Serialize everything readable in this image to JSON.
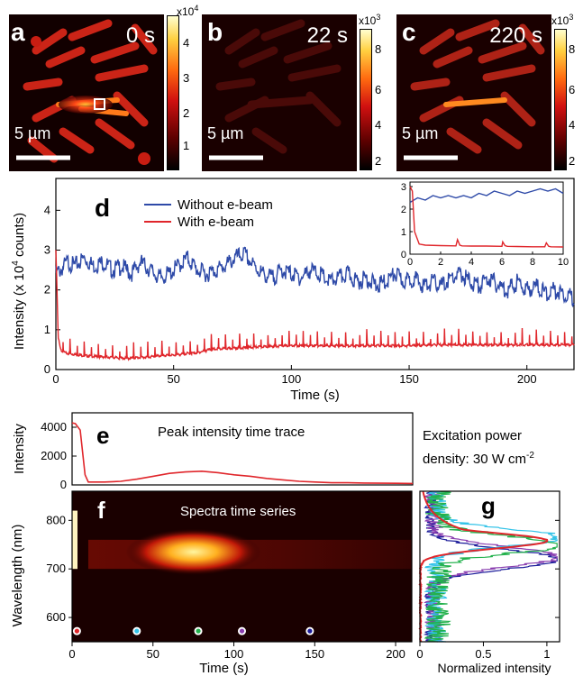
{
  "panels": {
    "a": {
      "letter": "a",
      "time": "0 s",
      "scale": "5 µm",
      "cb_exp": "x10",
      "cb_sup": "4",
      "cb_ticks": [
        "4",
        "3",
        "2",
        "1"
      ]
    },
    "b": {
      "letter": "b",
      "time": "22 s",
      "scale": "5 µm",
      "cb_exp": "x10",
      "cb_sup": "3",
      "cb_ticks": [
        "8",
        "6",
        "4",
        "2"
      ]
    },
    "c": {
      "letter": "c",
      "time": "220 s",
      "scale": "5 µm",
      "cb_exp": "x10",
      "cb_sup": "3",
      "cb_ticks": [
        "8",
        "6",
        "4",
        "2"
      ]
    }
  },
  "colors": {
    "blue": "#2e4aa8",
    "red": "#e0262b",
    "green": "#22b14c",
    "cyan": "#33c3e8",
    "purple": "#8a3fb0",
    "navy": "#1c1c9a"
  },
  "chart_data": [
    {
      "panel": "d",
      "type": "line",
      "ylabel_pre": "Intensity (x 10",
      "ylabel_sup": "4",
      "ylabel_post": " counts)",
      "xlabel": "Time (s)",
      "xlim": [
        0,
        220
      ],
      "ylim": [
        0,
        4.8
      ],
      "xticks": [
        0,
        50,
        100,
        150,
        200
      ],
      "yticks": [
        0,
        1,
        2,
        3,
        4
      ],
      "legend": "top-center",
      "series": [
        {
          "name": "Without e-beam",
          "color": "#2e4aa8",
          "x": [
            0,
            2,
            5,
            8,
            12,
            16,
            20,
            24,
            28,
            32,
            36,
            40,
            44,
            48,
            52,
            56,
            60,
            64,
            68,
            72,
            76,
            80,
            84,
            88,
            92,
            96,
            100,
            104,
            108,
            112,
            116,
            120,
            124,
            128,
            132,
            136,
            140,
            144,
            148,
            152,
            156,
            160,
            164,
            168,
            172,
            176,
            180,
            184,
            188,
            192,
            196,
            200,
            204,
            208,
            212,
            216,
            220
          ],
          "y": [
            2.4,
            2.5,
            2.7,
            2.6,
            2.8,
            2.6,
            2.7,
            2.5,
            2.6,
            2.4,
            2.7,
            2.5,
            2.3,
            2.4,
            2.6,
            2.8,
            2.5,
            2.4,
            2.5,
            2.6,
            2.8,
            2.9,
            2.6,
            2.4,
            2.3,
            2.5,
            2.4,
            2.3,
            2.5,
            2.4,
            2.2,
            2.3,
            2.4,
            2.2,
            2.3,
            2.1,
            2.2,
            2.4,
            2.2,
            2.3,
            2.1,
            2.2,
            2.1,
            2.3,
            2.4,
            2.2,
            2.1,
            2.3,
            2.1,
            2.0,
            2.2,
            2.0,
            2.1,
            1.9,
            2.0,
            1.9,
            1.8
          ]
        },
        {
          "name": "With e-beam",
          "color": "#e0262b",
          "x": [
            0,
            0.5,
            1,
            2,
            3,
            5,
            8,
            12,
            16,
            20,
            25,
            30,
            35,
            40,
            45,
            50,
            55,
            60,
            65,
            70,
            80,
            90,
            100,
            110,
            120,
            130,
            140,
            150,
            160,
            170,
            180,
            190,
            200,
            210,
            220
          ],
          "y": [
            3.0,
            2.0,
            0.8,
            0.5,
            0.45,
            0.4,
            0.38,
            0.35,
            0.33,
            0.32,
            0.3,
            0.28,
            0.3,
            0.32,
            0.35,
            0.36,
            0.4,
            0.42,
            0.5,
            0.52,
            0.55,
            0.58,
            0.6,
            0.6,
            0.6,
            0.6,
            0.6,
            0.6,
            0.62,
            0.62,
            0.62,
            0.62,
            0.62,
            0.62,
            0.62
          ],
          "spike_period": 3.0,
          "spike_height": 0.4
        }
      ],
      "inset": {
        "xlim": [
          0,
          10
        ],
        "ylim": [
          0,
          3.2
        ],
        "xticks": [
          0,
          2,
          4,
          6,
          8,
          10
        ],
        "yticks": [
          0,
          1,
          2,
          3
        ],
        "series": [
          {
            "name": "Without e-beam",
            "color": "#2e4aa8",
            "x": [
              0,
              0.5,
              1,
              1.5,
              2,
              2.5,
              3,
              3.5,
              4,
              4.5,
              5,
              5.5,
              6,
              6.5,
              7,
              7.5,
              8,
              8.5,
              9,
              9.5,
              10
            ],
            "y": [
              2.3,
              2.5,
              2.4,
              2.6,
              2.5,
              2.6,
              2.5,
              2.6,
              2.5,
              2.7,
              2.6,
              2.8,
              2.7,
              2.6,
              2.8,
              2.7,
              2.8,
              2.9,
              2.8,
              2.9,
              2.7
            ]
          },
          {
            "name": "With e-beam",
            "color": "#e0262b",
            "x": [
              0,
              0.15,
              0.3,
              0.6,
              1,
              2,
              3,
              3.1,
              3.25,
              3.4,
              4,
              5,
              6,
              6.05,
              6.2,
              6.35,
              7,
              8,
              8.8,
              8.9,
              9.05,
              9.2,
              10
            ],
            "y": [
              3.0,
              2.8,
              1.0,
              0.45,
              0.4,
              0.38,
              0.37,
              0.65,
              0.4,
              0.37,
              0.36,
              0.36,
              0.35,
              0.55,
              0.38,
              0.35,
              0.34,
              0.33,
              0.33,
              0.5,
              0.35,
              0.33,
              0.32
            ]
          }
        ]
      }
    },
    {
      "panel": "e",
      "type": "line",
      "title": "Peak intensity time trace",
      "ylabel": "Intensity",
      "xlim": [
        0,
        210
      ],
      "ylim": [
        0,
        5000
      ],
      "yticks": [
        0,
        2000,
        4000
      ],
      "series": [
        {
          "name": "",
          "color": "#e0262b",
          "x": [
            0,
            2,
            5,
            8,
            10,
            15,
            20,
            30,
            40,
            50,
            60,
            70,
            80,
            90,
            100,
            110,
            120,
            130,
            140,
            150,
            160,
            170,
            180,
            190,
            200,
            210
          ],
          "y": [
            4300,
            4250,
            3800,
            700,
            200,
            200,
            200,
            250,
            400,
            600,
            800,
            900,
            950,
            850,
            700,
            600,
            450,
            350,
            250,
            200,
            150,
            150,
            130,
            120,
            110,
            100
          ]
        }
      ]
    },
    {
      "panel": "f",
      "type": "heatmap",
      "title": "Spectra time series",
      "xlabel": "Time (s)",
      "ylabel": "Wavelength (nm)",
      "xlim": [
        0,
        210
      ],
      "ylim": [
        550,
        860
      ],
      "xticks": [
        0,
        50,
        100,
        150,
        200
      ],
      "yticks": [
        600,
        700,
        800
      ],
      "markers": [
        {
          "x": 3,
          "color": "#e0262b"
        },
        {
          "x": 40,
          "color": "#33c3e8"
        },
        {
          "x": 78,
          "color": "#22b14c"
        },
        {
          "x": 105,
          "color": "#8a3fb0"
        },
        {
          "x": 147,
          "color": "#1c1c9a"
        }
      ]
    },
    {
      "panel": "g",
      "type": "line",
      "xlabel": "Normalized intensity",
      "xlim": [
        0,
        1.1
      ],
      "ylim": [
        550,
        860
      ],
      "xticks": [
        0,
        0.5,
        1
      ],
      "xticklabels": [
        "0",
        "0.5",
        "1"
      ],
      "series": [
        {
          "name": "",
          "color": "#1c1c9a",
          "peak": 720,
          "width": 28
        },
        {
          "name": "",
          "color": "#8a3fb0",
          "peak": 725,
          "width": 28
        },
        {
          "name": "",
          "color": "#33c3e8",
          "peak": 765,
          "width": 24
        },
        {
          "name": "",
          "color": "#22b14c",
          "peak": 750,
          "width": 24
        },
        {
          "name": "",
          "color": "#e0262b",
          "peak": 758,
          "width": 22
        }
      ]
    }
  ],
  "labels": {
    "d_letter": "d",
    "e_letter": "e",
    "f_letter": "f",
    "g_letter": "g",
    "power_line1": "Excitation power",
    "power_line2": "density: 30 W cm",
    "power_sup": "-2"
  }
}
